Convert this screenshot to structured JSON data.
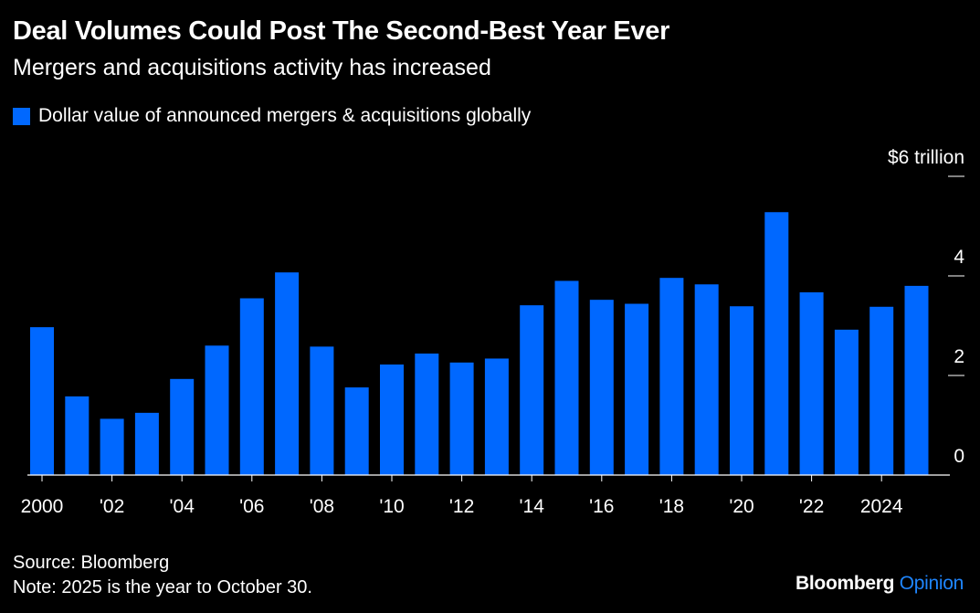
{
  "title": "Deal Volumes Could Post The Second-Best Year Ever",
  "subtitle": "Mergers and acquisitions activity has increased",
  "legend_label": "Dollar value of announced mergers & acquisitions globally",
  "source": "Source: Bloomberg",
  "note": "Note: 2025 is the year to October 30.",
  "brand_part1": "Bloomberg",
  "brand_part2": "Opinion",
  "colors": {
    "background": "#000000",
    "bar": "#0068ff",
    "brand_accent": "#1f86ff"
  },
  "chart_data": {
    "type": "bar",
    "categories": [
      "2000",
      "2001",
      "2002",
      "2003",
      "2004",
      "2005",
      "2006",
      "2007",
      "2008",
      "2009",
      "2010",
      "2011",
      "2012",
      "2013",
      "2014",
      "2015",
      "2016",
      "2017",
      "2018",
      "2019",
      "2020",
      "2021",
      "2022",
      "2023",
      "2024",
      "2025"
    ],
    "x_tick_labels": [
      "2000",
      "'02",
      "'04",
      "'06",
      "'08",
      "'10",
      "'12",
      "'14",
      "'16",
      "'18",
      "'20",
      "'22",
      "2024"
    ],
    "values": [
      2.97,
      1.58,
      1.13,
      1.25,
      1.93,
      2.6,
      3.55,
      4.07,
      2.58,
      1.76,
      2.22,
      2.44,
      2.26,
      2.34,
      3.41,
      3.9,
      3.52,
      3.44,
      3.96,
      3.83,
      3.39,
      5.28,
      3.67,
      2.92,
      3.38,
      3.8
    ],
    "y_ticks": [
      {
        "value": 0,
        "label": "0"
      },
      {
        "value": 2,
        "label": "2"
      },
      {
        "value": 4,
        "label": "4"
      },
      {
        "value": 6,
        "label": "$6 trillion"
      }
    ],
    "ylim": [
      0,
      6
    ],
    "ylabel": "",
    "xlabel": "",
    "grid": false,
    "y_axis_side": "right",
    "legend_position": "top-left"
  }
}
